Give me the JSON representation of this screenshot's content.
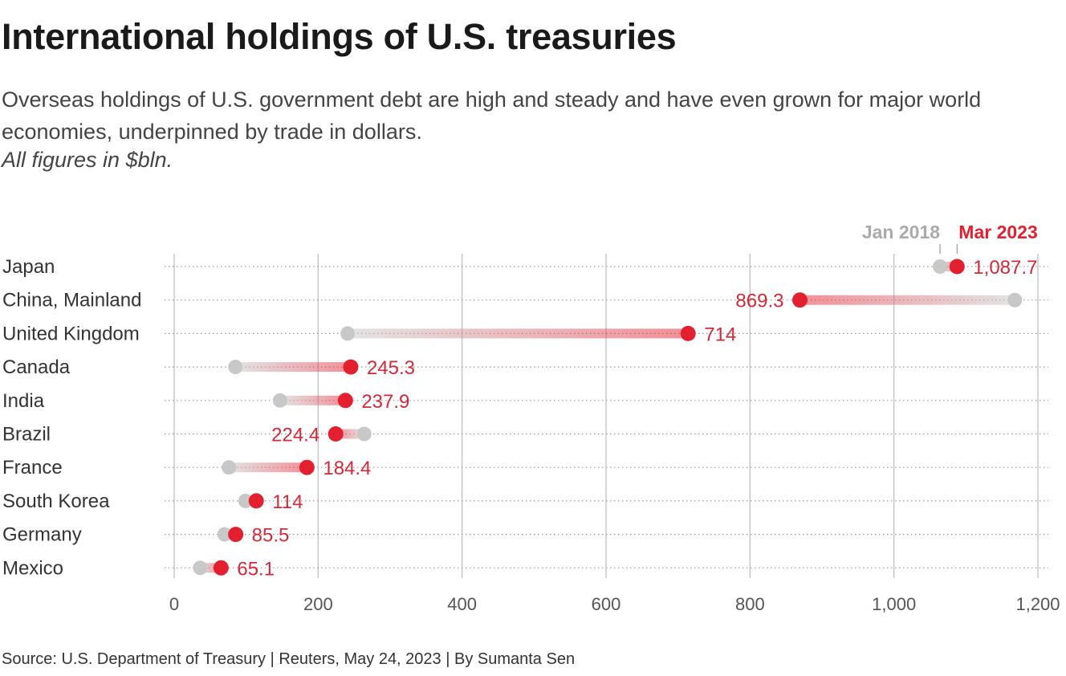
{
  "title": "International holdings of U.S. treasuries",
  "subtitle": "Overseas holdings of U.S. government debt are high and steady and have even grown for major world economies, underpinned by trade in dollars.",
  "note": "All figures in $bln.",
  "source": "Source: U.S. Department of Treasury | Reuters, May 24, 2023 | By Sumanta Sen",
  "colors": {
    "jan2018": "#c8c8c8",
    "mar2023": "#e3202f",
    "label": "#d32a3a",
    "grid": "#bbbbbb"
  },
  "chart_data": {
    "type": "dumbbell",
    "xlim": [
      0,
      1200
    ],
    "xticks": [
      0,
      200,
      400,
      600,
      800,
      1000,
      1200
    ],
    "xtick_labels": [
      "0",
      "200",
      "400",
      "600",
      "800",
      "1,000",
      "1,200"
    ],
    "grid": true,
    "legend": {
      "position": "top-right",
      "entries": [
        "Jan 2018",
        "Mar 2023"
      ]
    },
    "categories": [
      "Japan",
      "China, Mainland",
      "United Kingdom",
      "Canada",
      "India",
      "Brazil",
      "France",
      "South Korea",
      "Germany",
      "Mexico"
    ],
    "series": [
      {
        "name": "Jan 2018",
        "values": [
          1064,
          1168,
          241,
          85,
          147,
          264,
          76,
          99,
          70,
          36
        ]
      },
      {
        "name": "Mar 2023",
        "values": [
          1087.7,
          869.3,
          714,
          245.3,
          237.9,
          224.4,
          184.4,
          114,
          85.5,
          65.1
        ]
      }
    ],
    "value_labels": [
      "1,087.7",
      "869.3",
      "714",
      "245.3",
      "237.9",
      "224.4",
      "184.4",
      "114",
      "85.5",
      "65.1"
    ]
  }
}
